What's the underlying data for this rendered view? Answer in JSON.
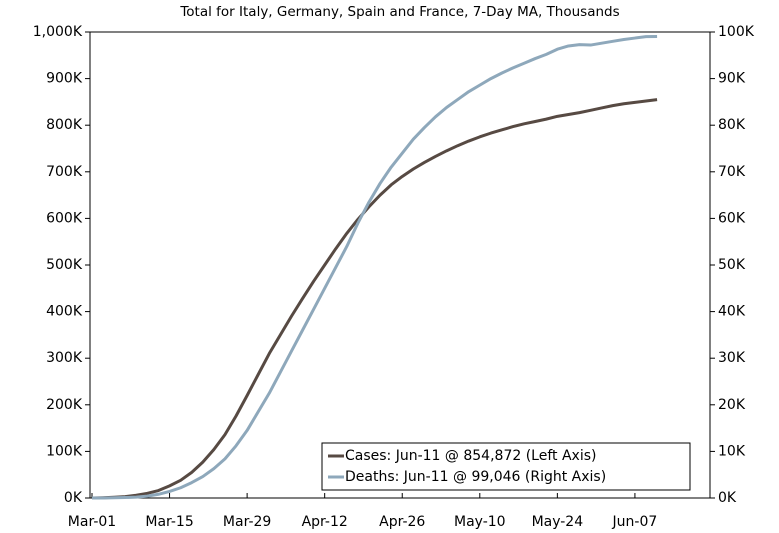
{
  "chart_data": {
    "type": "line",
    "title": "Total for Italy, Germany, Spain and France, 7-Day MA, Thousands",
    "categories": [
      "Mar-01",
      null,
      null,
      null,
      null,
      null,
      null,
      "Mar-15",
      null,
      null,
      null,
      null,
      null,
      null,
      "Mar-29",
      null,
      null,
      null,
      null,
      null,
      null,
      "Apr-12",
      null,
      null,
      null,
      null,
      null,
      null,
      "Apr-26",
      null,
      null,
      null,
      null,
      null,
      null,
      "May-10",
      null,
      null,
      null,
      null,
      null,
      null,
      "May-24",
      null,
      null,
      null,
      null,
      null,
      null,
      "Jun-07",
      null,
      null
    ],
    "series": [
      {
        "name": "Cases: Jun-11 @ 854,872 (Left Axis)",
        "color": "#574a43",
        "axis": "y",
        "values": [
          0,
          0.5,
          1.5,
          3,
          6,
          10,
          16,
          26,
          38,
          55,
          77,
          104,
          136,
          176,
          220,
          265,
          310,
          350,
          390,
          428,
          465,
          500,
          535,
          568,
          598,
          625,
          650,
          672,
          690,
          706,
          720,
          733,
          745,
          756,
          766,
          775,
          783,
          790,
          797,
          803,
          808,
          813,
          819,
          823,
          827,
          832,
          837,
          842,
          846,
          849,
          852,
          854.872
        ]
      },
      {
        "name": "Deaths: Jun-11 @ 99,046 (Right Axis)",
        "color": "#8ea8bb",
        "axis": "y2",
        "values": [
          0,
          0,
          0.05,
          0.1,
          0.2,
          0.4,
          0.8,
          1.4,
          2.2,
          3.3,
          4.6,
          6.3,
          8.4,
          11.2,
          14.5,
          18.5,
          22.5,
          27,
          31.5,
          36,
          40.5,
          45,
          49.5,
          54,
          59,
          63.5,
          67.5,
          71,
          74,
          77,
          79.5,
          81.8,
          83.8,
          85.5,
          87.2,
          88.6,
          90,
          91.2,
          92.3,
          93.3,
          94.3,
          95.2,
          96.3,
          97,
          97.3,
          97.2,
          97.6,
          98,
          98.4,
          98.7,
          99,
          99.046
        ]
      }
    ],
    "ylim": [
      0,
      1000
    ],
    "yticks": [
      {
        "value": 0,
        "label": "0K"
      },
      {
        "value": 100,
        "label": "100K"
      },
      {
        "value": 200,
        "label": "200K"
      },
      {
        "value": 300,
        "label": "300K"
      },
      {
        "value": 400,
        "label": "400K"
      },
      {
        "value": 500,
        "label": "500K"
      },
      {
        "value": 600,
        "label": "600K"
      },
      {
        "value": 700,
        "label": "700K"
      },
      {
        "value": 800,
        "label": "800K"
      },
      {
        "value": 900,
        "label": "900K"
      },
      {
        "value": 1000,
        "label": "1,000K"
      }
    ],
    "y2lim": [
      0,
      100
    ],
    "y2ticks": [
      {
        "value": 0,
        "label": "0K"
      },
      {
        "value": 10,
        "label": "10K"
      },
      {
        "value": 20,
        "label": "20K"
      },
      {
        "value": 30,
        "label": "30K"
      },
      {
        "value": 40,
        "label": "40K"
      },
      {
        "value": 50,
        "label": "50K"
      },
      {
        "value": 60,
        "label": "60K"
      },
      {
        "value": 70,
        "label": "70K"
      },
      {
        "value": 80,
        "label": "80K"
      },
      {
        "value": 90,
        "label": "90K"
      },
      {
        "value": 100,
        "label": "100K"
      }
    ],
    "grid": false,
    "legend": "lower right"
  }
}
